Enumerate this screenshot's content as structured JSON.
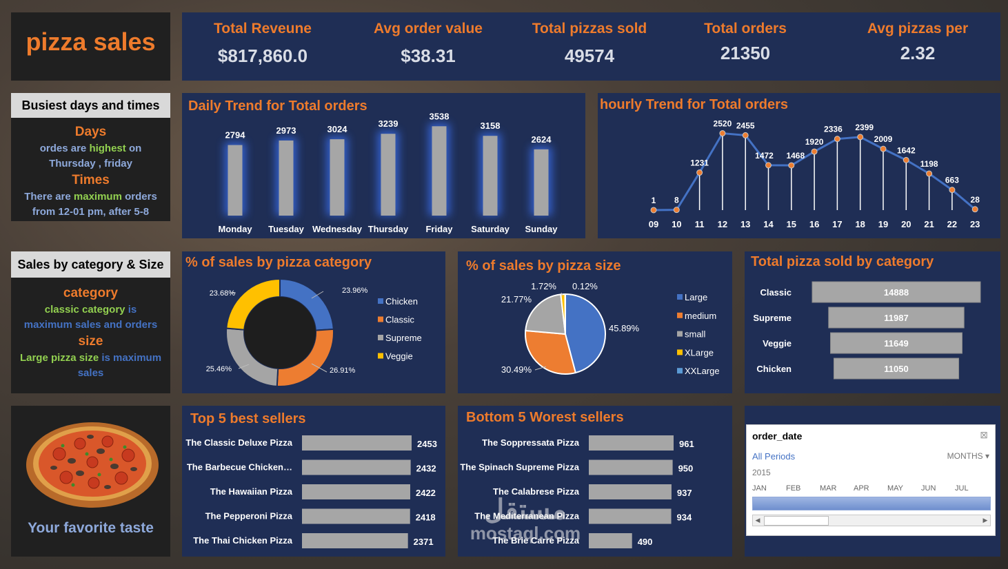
{
  "title": "pizza sales",
  "kpis": [
    {
      "label": "Total Reveune",
      "value": "$817,860.0"
    },
    {
      "label": "Avg order value",
      "value": "$38.31"
    },
    {
      "label": "Total pizzas sold",
      "value": "49574"
    },
    {
      "label": "Total orders",
      "value": "21350"
    },
    {
      "label": "Avg pizzas per",
      "value": "2.32"
    }
  ],
  "busiest": {
    "header": "Busiest days and times",
    "days_title": "Days",
    "days_line1_a": "ordes are ",
    "days_line1_b": "highest",
    "days_line1_c": " on",
    "days_line2": "Thursday , friday",
    "times_title": "Times",
    "times_line1_a": "There are ",
    "times_line1_b": "maximum",
    "times_line1_c": " orders",
    "times_line2": "from 12-01 pm, after 5-8"
  },
  "category_size": {
    "header": "Sales by category & Size",
    "cat_title": "category",
    "cat_line1_a": "classic category",
    "cat_line1_b": " is",
    "cat_line2": "maximum sales and orders",
    "size_title": "size",
    "size_line1_a": "Large pizza size",
    "size_line1_b": " is maximum",
    "size_line2": "sales"
  },
  "favorite": "Your favorite taste",
  "colors": {
    "orange": "#ee7b2c",
    "panel": "#1f2e55",
    "bar": "#a6a6a6",
    "line": "#4472c4"
  },
  "chart_data": [
    {
      "type": "bar",
      "title": "Daily Trend for Total orders",
      "categories": [
        "Monday",
        "Tuesday",
        "Wednesday",
        "Thursday",
        "Friday",
        "Saturday",
        "Sunday"
      ],
      "values": [
        2794,
        2973,
        3024,
        3239,
        3538,
        3158,
        2624
      ]
    },
    {
      "type": "line",
      "title": "hourly Trend for Total orders",
      "categories": [
        "09",
        "10",
        "11",
        "12",
        "13",
        "14",
        "15",
        "16",
        "17",
        "18",
        "19",
        "20",
        "21",
        "22",
        "23"
      ],
      "values": [
        1,
        8,
        1231,
        2520,
        2455,
        1472,
        1468,
        1920,
        2336,
        2399,
        2009,
        1642,
        1198,
        663,
        28
      ]
    },
    {
      "type": "pie",
      "title": "% of sales by pizza category",
      "categories": [
        "Chicken",
        "Classic",
        "Supreme",
        "Veggie"
      ],
      "values": [
        23.96,
        26.91,
        25.46,
        23.68
      ],
      "labels": [
        "23.96%",
        "26.91%",
        "25.46%",
        "23.68%"
      ],
      "colors": [
        "#4472c4",
        "#ed7d31",
        "#a5a5a5",
        "#ffc000"
      ]
    },
    {
      "type": "pie",
      "title": "% of sales by pizza size",
      "categories": [
        "Large",
        "medium",
        "small",
        "XLarge",
        "XXLarge"
      ],
      "values": [
        45.89,
        30.49,
        21.77,
        1.72,
        0.12
      ],
      "labels": [
        "45.89%",
        "30.49%",
        "21.77%",
        "1.72%",
        "0.12%"
      ],
      "colors": [
        "#4472c4",
        "#ed7d31",
        "#a5a5a5",
        "#ffc000",
        "#5b9bd5"
      ]
    },
    {
      "type": "bar",
      "title": "Total pizza sold by category",
      "categories": [
        "Classic",
        "Supreme",
        "Veggie",
        "Chicken"
      ],
      "values": [
        14888,
        11987,
        11649,
        11050
      ]
    },
    {
      "type": "bar",
      "title": "Top 5 best sellers",
      "categories": [
        "The Classic Deluxe Pizza",
        "The Barbecue Chicken…",
        "The Hawaiian Pizza",
        "The Pepperoni Pizza",
        "The Thai Chicken Pizza"
      ],
      "values": [
        2453,
        2432,
        2422,
        2418,
        2371
      ]
    },
    {
      "type": "bar",
      "title": "Bottom 5 Worest sellers",
      "categories": [
        "The Soppressata Pizza",
        "The Spinach Supreme Pizza",
        "The Calabrese Pizza",
        "The Mediterranean Pizza",
        "The Brie Carre Pizza"
      ],
      "values": [
        961,
        950,
        937,
        934,
        490
      ]
    }
  ],
  "slicer": {
    "title": "order_date",
    "period": "All Periods",
    "unit": "MONTHS",
    "year": "2015",
    "months": [
      "JAN",
      "FEB",
      "MAR",
      "APR",
      "MAY",
      "JUN",
      "JUL"
    ]
  },
  "watermark": {
    "arabic": "مستقل",
    "latin": "mostaql.com"
  }
}
